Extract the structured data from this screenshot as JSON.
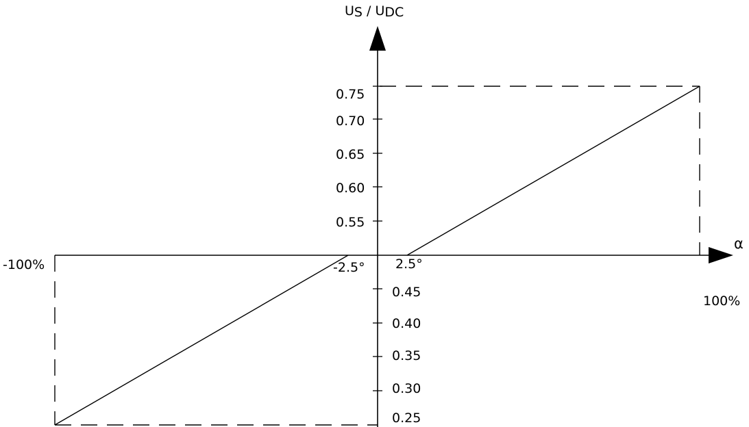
{
  "chart_data": {
    "type": "line",
    "ylabel": {
      "main1": "U",
      "sub1": "S",
      "sep": " / ",
      "main2": "U",
      "sub2": "DC"
    },
    "xlabel": "α",
    "x_end_labels": {
      "left": "-100%",
      "right": "100%"
    },
    "x_near_origin_labels": {
      "left": "-2.5°",
      "right": "2.5°"
    },
    "yticks_upper": [
      "0.75",
      "0.70",
      "0.65",
      "0.60",
      "0.55"
    ],
    "yticks_lower": [
      "0.45",
      "0.40",
      "0.35",
      "0.30",
      "0.25"
    ],
    "series": [
      {
        "x": [
          "-100%",
          "-2.5°"
        ],
        "y": [
          0.25,
          0.5
        ]
      },
      {
        "x": [
          "2.5°",
          "100%"
        ],
        "y": [
          0.5,
          0.75
        ]
      }
    ],
    "colors": {
      "line": "#000000",
      "background": "#ffffff"
    }
  }
}
